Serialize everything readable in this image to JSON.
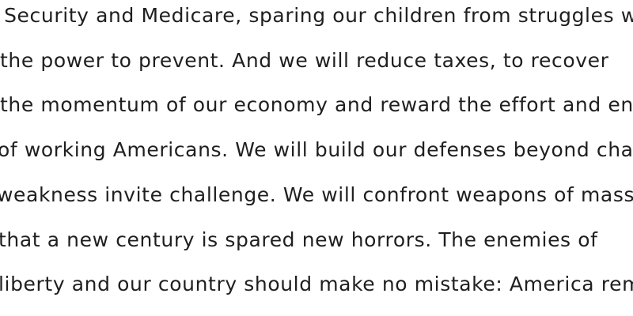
{
  "text": {
    "lines": [
      "l Security and Medicare, sparing our children from struggles we",
      "the power to prevent. And we will reduce taxes, to recover",
      "the momentum of our economy and reward the effort and ente",
      "of working Americans. We will build our defenses beyond chall",
      "weakness invite challenge. We will confront weapons of mass",
      "that a new century is spared new horrors. The enemies of",
      "liberty and our country should make no mistake: America rema"
    ]
  }
}
